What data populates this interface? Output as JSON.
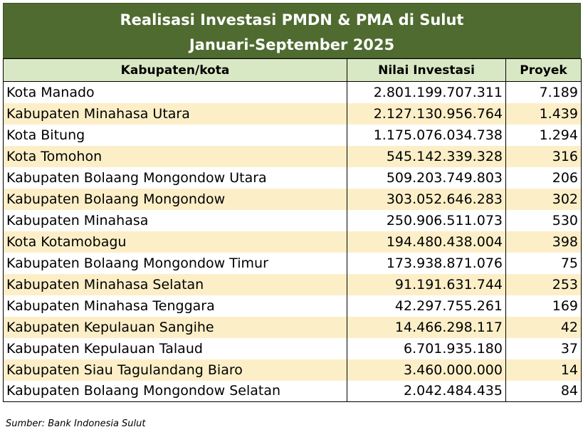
{
  "title": {
    "line1": "Realisasi Investasi PMDN & PMA di Sulut",
    "line2": "Januari-September 2025"
  },
  "headers": {
    "region": "Kabupaten/kota",
    "investment": "Nilai Investasi",
    "projects": "Proyek"
  },
  "rows": [
    {
      "region": "Kota Manado",
      "investment": "2.801.199.707.311",
      "projects": "7.189"
    },
    {
      "region": "Kabupaten Minahasa Utara",
      "investment": "2.127.130.956.764",
      "projects": "1.439"
    },
    {
      "region": "Kota Bitung",
      "investment": "1.175.076.034.738",
      "projects": "1.294"
    },
    {
      "region": "Kota Tomohon",
      "investment": "545.142.339.328",
      "projects": "316"
    },
    {
      "region": "Kabupaten Bolaang Mongondow Utara",
      "investment": "509.203.749.803",
      "projects": "206"
    },
    {
      "region": "Kabupaten Bolaang Mongondow",
      "investment": "303.052.646.283",
      "projects": "302"
    },
    {
      "region": "Kabupaten Minahasa",
      "investment": "250.906.511.073",
      "projects": "530"
    },
    {
      "region": "Kota Kotamobagu",
      "investment": "194.480.438.004",
      "projects": "398"
    },
    {
      "region": "Kabupaten Bolaang Mongondow Timur",
      "investment": "173.938.871.076",
      "projects": "75"
    },
    {
      "region": "Kabupaten Minahasa Selatan",
      "investment": "91.191.631.744",
      "projects": "253"
    },
    {
      "region": "Kabupaten Minahasa Tenggara",
      "investment": "42.297.755.261",
      "projects": "169"
    },
    {
      "region": "Kabupaten Kepulauan Sangihe",
      "investment": "14.466.298.117",
      "projects": "42"
    },
    {
      "region": "Kabupaten Kepulauan Talaud",
      "investment": "6.701.935.180",
      "projects": "37"
    },
    {
      "region": "Kabupaten Siau Tagulandang Biaro",
      "investment": "3.460.000.000",
      "projects": "14"
    },
    {
      "region": "Kabupaten Bolaang Mongondow Selatan",
      "investment": "2.042.484.435",
      "projects": "84"
    }
  ],
  "source": "Sumber: Bank Indonesia Sulut",
  "colors": {
    "title_bg": "#4f6b30",
    "header_bg": "#d9e8c4",
    "stripe_bg": "#fcefc8"
  }
}
